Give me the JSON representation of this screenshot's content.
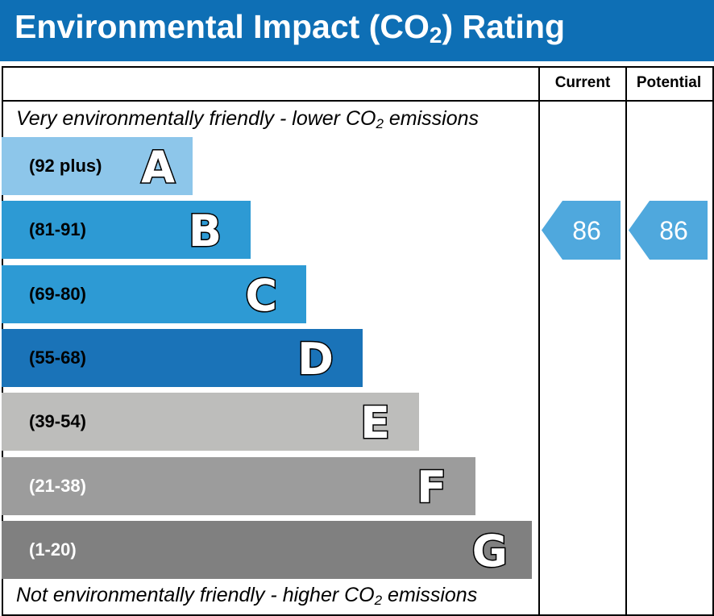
{
  "header": {
    "title_pre": "Environmental Impact (CO",
    "title_sub": "2",
    "title_post": ") Rating"
  },
  "columns": {
    "current": "Current",
    "potential": "Potential"
  },
  "notes": {
    "top_pre": "Very environmentally friendly - lower CO",
    "top_sub": "2",
    "top_post": " emissions",
    "bottom_pre": "Not environmentally friendly - higher CO",
    "bottom_sub": "2",
    "bottom_post": " emissions"
  },
  "chart_data": {
    "type": "bar",
    "categories": [
      "A",
      "B",
      "C",
      "D",
      "E",
      "F",
      "G"
    ],
    "ranges": [
      "(92 plus)",
      "(81-91)",
      "(69-80)",
      "(55-68)",
      "(39-54)",
      "(21-38)",
      "(1-20)"
    ],
    "colors": [
      "#8dc6ea",
      "#2d9ad4",
      "#2d9ad4",
      "#1a73b8",
      "#bdbdbb",
      "#9c9c9c",
      "#808080"
    ],
    "range_text_colors": [
      "#000000",
      "#000000",
      "#000000",
      "#000000",
      "#000000",
      "#ffffff",
      "#ffffff"
    ],
    "current": {
      "value": 86,
      "band": "B",
      "color": "#4fa8dd"
    },
    "potential": {
      "value": 86,
      "band": "B",
      "color": "#4fa8dd"
    }
  }
}
